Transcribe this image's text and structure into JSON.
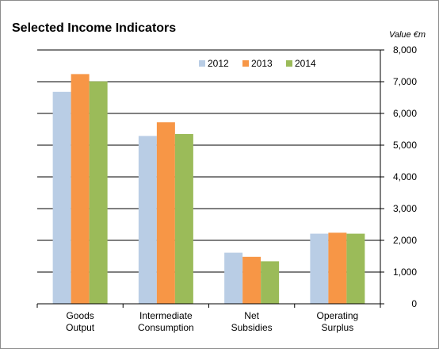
{
  "chart_data": {
    "type": "bar",
    "title": "Selected Income Indicators",
    "unit_label": "Value €m",
    "categories": [
      [
        "Goods",
        "Output"
      ],
      [
        "Intermediate",
        "Consumption"
      ],
      [
        "Net",
        "Subsidies"
      ],
      [
        "Operating",
        "Surplus"
      ]
    ],
    "series": [
      {
        "name": "2012",
        "color": "#b9cde5",
        "values": [
          6680,
          5290,
          1610,
          2210
        ]
      },
      {
        "name": "2013",
        "color": "#f79646",
        "values": [
          7240,
          5720,
          1480,
          2240
        ]
      },
      {
        "name": "2014",
        "color": "#9bbb59",
        "values": [
          7010,
          5350,
          1340,
          2210
        ]
      }
    ],
    "ylim": [
      0,
      8000
    ],
    "yticks": [
      0,
      1000,
      2000,
      3000,
      4000,
      5000,
      6000,
      7000,
      8000
    ],
    "ytick_labels": [
      "0",
      "1,000",
      "2,000",
      "3,000",
      "4,000",
      "5,000",
      "6,000",
      "7,000",
      "8,000"
    ],
    "y_axis_position": "right",
    "grid": true,
    "legend_position": "top-center"
  }
}
